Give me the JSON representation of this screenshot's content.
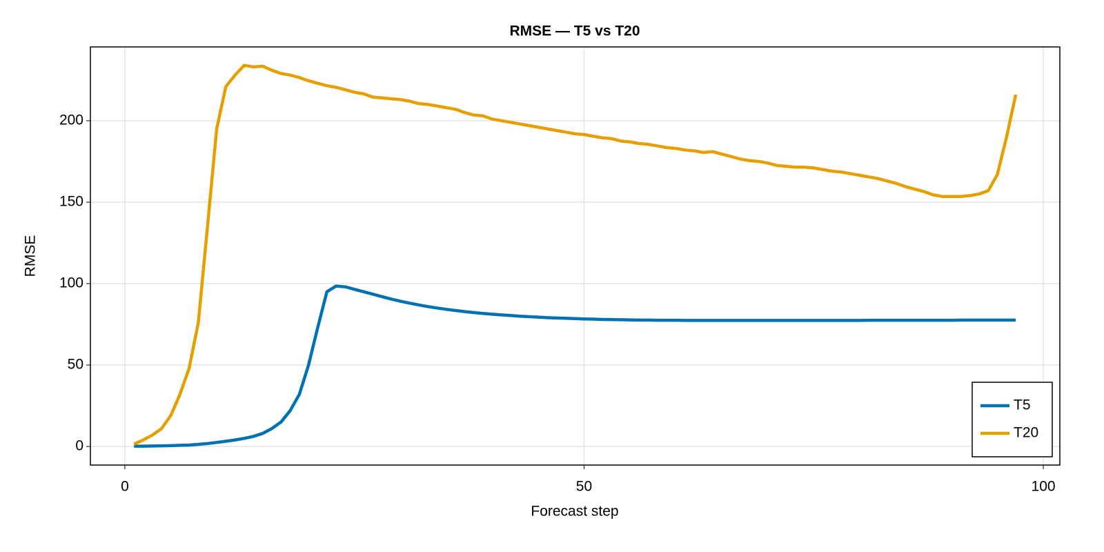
{
  "chart_data": {
    "type": "line",
    "title": "RMSE — T5 vs T20",
    "xlabel": "Forecast step",
    "ylabel": "RMSE",
    "x": [
      1,
      2,
      3,
      4,
      5,
      6,
      7,
      8,
      9,
      10,
      11,
      12,
      13,
      14,
      15,
      16,
      17,
      18,
      19,
      20,
      21,
      22,
      23,
      24,
      25,
      26,
      27,
      28,
      29,
      30,
      31,
      32,
      33,
      34,
      35,
      36,
      37,
      38,
      39,
      40,
      41,
      42,
      43,
      44,
      45,
      46,
      47,
      48,
      49,
      50,
      51,
      52,
      53,
      54,
      55,
      56,
      57,
      58,
      59,
      60,
      61,
      62,
      63,
      64,
      65,
      66,
      67,
      68,
      69,
      70,
      71,
      72,
      73,
      74,
      75,
      76,
      77,
      78,
      79,
      80,
      81,
      82,
      83,
      84,
      85,
      86,
      87,
      88,
      89,
      90,
      91,
      92,
      93,
      94,
      95,
      96,
      97
    ],
    "series": [
      {
        "name": "T5",
        "color": "#0072b2",
        "values": [
          0.2,
          0.2,
          0.3,
          0.4,
          0.5,
          0.7,
          0.9,
          1.3,
          1.8,
          2.5,
          3.2,
          4,
          5,
          6.2,
          8,
          11,
          15,
          22,
          32,
          50,
          73,
          95,
          98.5,
          98,
          96.5,
          95,
          93.5,
          92,
          90.5,
          89.2,
          88,
          86.9,
          85.9,
          85,
          84.2,
          83.5,
          82.8,
          82.2,
          81.7,
          81.2,
          80.8,
          80.4,
          80,
          79.7,
          79.4,
          79.1,
          78.9,
          78.7,
          78.5,
          78.3,
          78.2,
          78,
          77.9,
          77.8,
          77.7,
          77.6,
          77.6,
          77.5,
          77.5,
          77.5,
          77.4,
          77.4,
          77.4,
          77.4,
          77.4,
          77.4,
          77.4,
          77.4,
          77.4,
          77.4,
          77.4,
          77.4,
          77.4,
          77.4,
          77.4,
          77.4,
          77.4,
          77.4,
          77.4,
          77.4,
          77.5,
          77.5,
          77.5,
          77.5,
          77.5,
          77.5,
          77.5,
          77.5,
          77.5,
          77.5,
          77.6,
          77.6,
          77.6,
          77.6,
          77.6,
          77.6,
          77.6
        ]
      },
      {
        "name": "T20",
        "color": "#e69f00",
        "values": [
          1.5,
          4,
          7,
          11,
          19,
          32,
          48,
          76,
          135,
          195,
          221,
          228,
          234,
          233,
          233.5,
          231,
          229,
          228,
          226.5,
          224.5,
          223,
          221.5,
          220.5,
          219,
          217.5,
          216.5,
          214.5,
          214,
          213.5,
          213,
          212,
          210.5,
          210,
          209,
          208,
          207,
          205,
          203.5,
          203,
          201,
          200,
          199,
          198,
          197,
          196,
          195,
          194,
          193,
          192,
          191.5,
          190.5,
          189.5,
          189,
          187.5,
          187,
          186,
          185.5,
          184.5,
          183.5,
          183,
          182,
          181.5,
          180.5,
          181,
          179.5,
          178,
          176.5,
          175.5,
          175,
          174,
          172.5,
          172,
          171.5,
          171.5,
          171,
          170,
          169,
          168.5,
          167.5,
          166.5,
          165.5,
          164.5,
          163,
          161.5,
          159.5,
          158,
          156.5,
          154.5,
          153.5,
          153.5,
          153.5,
          154,
          155,
          157,
          167,
          190,
          216
        ]
      }
    ],
    "xlim": [
      -3.75,
      101.8
    ],
    "ylim": [
      -11.4,
      245.3
    ],
    "xticks": [
      0,
      50,
      100
    ],
    "yticks": [
      0,
      50,
      100,
      150,
      200
    ],
    "grid": true,
    "legend": "lower right"
  }
}
